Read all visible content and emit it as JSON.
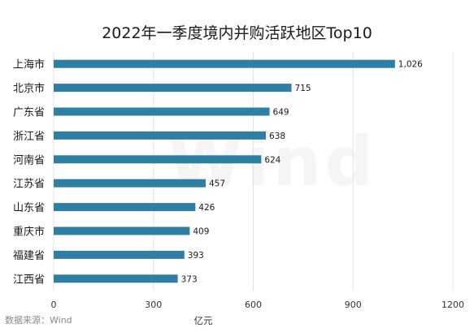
{
  "chart_data": {
    "type": "bar",
    "orientation": "horizontal",
    "title": "2022年一季度境内并购活跃地区Top10",
    "xlabel": "亿元",
    "ylabel": "",
    "xlim": [
      0,
      1200
    ],
    "xticks": [
      0,
      300,
      600,
      900,
      1200
    ],
    "categories": [
      "上海市",
      "北京市",
      "广东省",
      "浙江省",
      "河南省",
      "江苏省",
      "山东省",
      "重庆市",
      "福建省",
      "江西省"
    ],
    "values": [
      1026,
      715,
      649,
      638,
      624,
      457,
      426,
      409,
      393,
      373
    ],
    "value_labels": [
      "1,026",
      "715",
      "649",
      "638",
      "624",
      "457",
      "426",
      "409",
      "393",
      "373"
    ],
    "grid": true,
    "bar_color": "#2f7ea3"
  },
  "source_note": "数据来源：Wind",
  "watermark": "Wind"
}
